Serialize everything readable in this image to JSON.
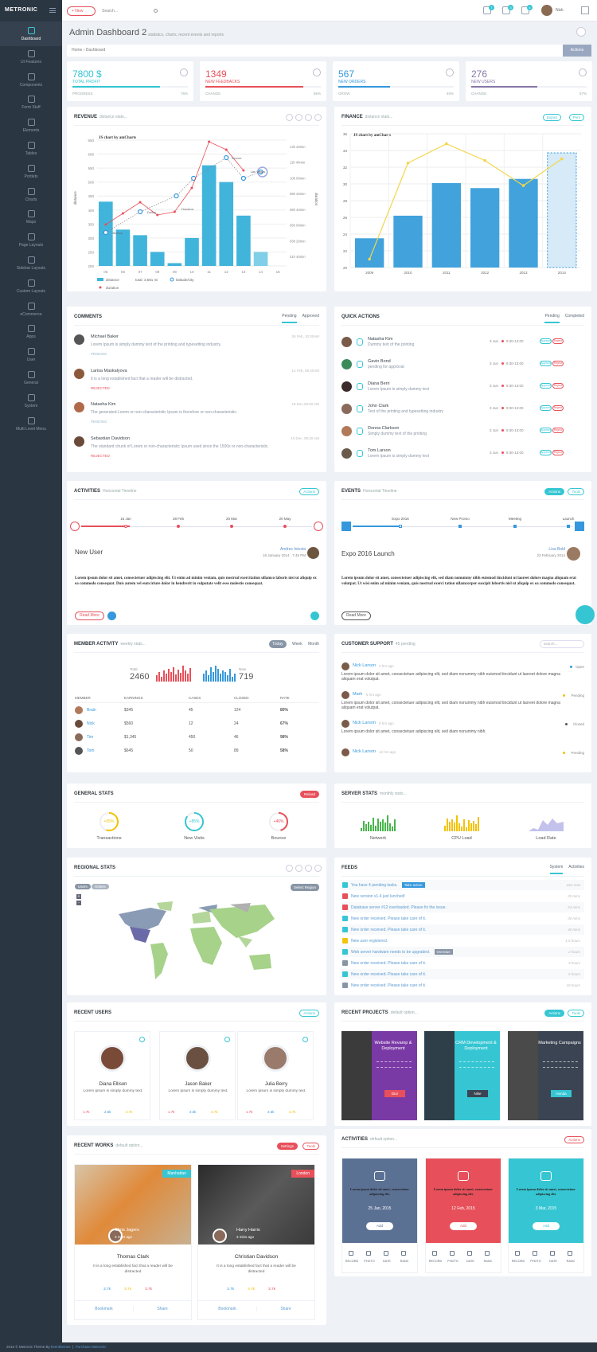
{
  "brand": "METRONIC",
  "topbar": {
    "new_label": "+ New",
    "search_placeholder": "Search...",
    "user_name": "Nick",
    "badges": [
      "7",
      "3",
      "4"
    ]
  },
  "sidebar": [
    "Dashboard",
    "UI Features",
    "Components",
    "Form Stuff",
    "Elements",
    "Tables",
    "Portlets",
    "Charts",
    "Maps",
    "Page Layouts",
    "Sidebar Layouts",
    "Custom Layouts",
    "eCommerce",
    "Apps",
    "User",
    "General",
    "System",
    "Multi Level Menu"
  ],
  "page": {
    "title": "Admin Dashboard 2",
    "subtitle": "statistics, charts, recent events and reports",
    "breadcrumb_home": "Home",
    "breadcrumb_current": "Dashboard",
    "actions_label": "Actions"
  },
  "stats": [
    {
      "value": "7800 $",
      "label": "TOTAL PROFIT",
      "progress_label": "PROGRESS",
      "pct": "76%",
      "fill": 0.76,
      "color": "#32c5d2"
    },
    {
      "value": "1349",
      "label": "NEW FEEDBACKS",
      "progress_label": "CHANGE",
      "pct": "85%",
      "fill": 0.85,
      "color": "#e7505a"
    },
    {
      "value": "567",
      "label": "NEW ORDERS",
      "progress_label": "GROW",
      "pct": "45%",
      "fill": 0.45,
      "color": "#3598dc"
    },
    {
      "value": "276",
      "label": "NEW USERS",
      "progress_label": "CHANGE",
      "pct": "57%",
      "fill": 0.57,
      "color": "#8877a9"
    }
  ],
  "revenue": {
    "title": "REVENUE",
    "subtitle": "distance stats...",
    "chart_data": {
      "type": "bar",
      "categories": [
        "05",
        "06",
        "07",
        "08",
        "09",
        "10",
        "11",
        "12",
        "13",
        "14",
        "15"
      ],
      "series": [
        {
          "name": "distance",
          "values": [
            430,
            330,
            310,
            250,
            210,
            300,
            560,
            500,
            380,
            250,
            0
          ]
        }
      ],
      "ylim": [
        200,
        650
      ],
      "yticks": [
        "650",
        "600",
        "550",
        "500",
        "450",
        "400",
        "350",
        "300",
        "250",
        "200"
      ],
      "y2ticks": [
        "13h 20min",
        "11h 40min",
        "10h 00min",
        "08h 20min",
        "06h 40min",
        "05h 00min",
        "03h 20min",
        "01h 40min"
      ],
      "ylabel": "distance",
      "y2label": "duration",
      "line_labels": [
        "Denver",
        "Las Vegas",
        "Houston",
        "Dallas",
        "Boston"
      ],
      "legend": [
        "distance",
        "total: 3,581 mi",
        "latitude/city",
        "duration"
      ],
      "watermark": "JS chart by amCharts"
    }
  },
  "finance": {
    "title": "FINANCE",
    "subtitle": "distance stats...",
    "export_label": "Export",
    "print_label": "Print",
    "chart_data": {
      "type": "bar",
      "categories": [
        "2009",
        "2010",
        "2011",
        "2012",
        "2013",
        "2014"
      ],
      "series": [
        {
          "name": "bars",
          "values": [
            23.5,
            26.2,
            30.1,
            29.5,
            30.6,
            29.0
          ]
        },
        {
          "name": "line",
          "values": [
            21,
            32.5,
            34.8,
            32.8,
            29.8,
            33
          ]
        }
      ],
      "ylim": [
        20,
        36
      ],
      "yticks": [
        "36",
        "34",
        "32",
        "30",
        "28",
        "26",
        "24",
        "22",
        "20"
      ],
      "watermark": "JS chart by amCharts"
    }
  },
  "comments": {
    "title": "COMMENTS",
    "tabs": [
      "Pending",
      "Approved"
    ],
    "items": [
      {
        "name": "Michael Baker",
        "date": "26 Feb, 10:30AM",
        "text": "Lorem Ipsum is simply dummy text of the printing and typesetting industry.",
        "status": "PENDING"
      },
      {
        "name": "Larisa Maskalyova",
        "date": "12 Feb, 08:30AM",
        "text": "It is a long established fact that a reader will be distracted.",
        "status": "REJECTED"
      },
      {
        "name": "Natasha Kim",
        "date": "19 Dec,09:50 AM",
        "text": "The generated Lorem or non-characteristic Ipsum is therefore or non-characteristic.",
        "status": "PENDING"
      },
      {
        "name": "Sebastian Davidson",
        "date": "10 Dec, 09:20 AM",
        "text": "The standard chunk of Lorem or non-characteristic Ipsum used since the 1500s or non-characteristic.",
        "status": "REJECTED"
      }
    ]
  },
  "quick_actions": {
    "title": "QUICK ACTIONS",
    "tabs": [
      "Pending",
      "Completed"
    ],
    "approve": "Approve",
    "reject": "Reject",
    "items": [
      {
        "name": "Natasha Kim",
        "text": "Dummy text of the printing",
        "date": "3 Jun",
        "time": "9:30-13:00"
      },
      {
        "name": "Gavin Bond",
        "text": "pending for approval",
        "date": "3 Jun",
        "time": "9:30-13:00"
      },
      {
        "name": "Diana Berri",
        "text": "Lorem Ipsum is simply dummy text",
        "date": "3 Jun",
        "time": "9:30-13:00"
      },
      {
        "name": "John Clark",
        "text": "Text of the printing and typesetting industry",
        "date": "3 Jun",
        "time": "9:30-13:00"
      },
      {
        "name": "Donna Clarkson",
        "text": "Simply dummy text of the printing",
        "date": "3 Jun",
        "time": "9:30-13:00"
      },
      {
        "name": "Tom Larson",
        "text": "Lorem Ipsum is simply dummy text",
        "date": "3 Jun",
        "time": "9:30-13:00"
      }
    ]
  },
  "activities": {
    "title": "ACTIVITIES",
    "subtitle": "Horizontal Timeline",
    "actions": "Actions",
    "dates": [
      "16 Jan",
      "28 Feb",
      "20 Mar",
      "20 May"
    ],
    "heading": "New User",
    "author": "Andres Iniesta",
    "when": "16 January 2014 : 7:45 PM",
    "body": "Lorem ipsum dolor sit amet, consectetuer adipiscing elit. Ut enim ad minim veniam, quis nostrud exercitation ullamco laboris nisi ut aliquip ex ea commodo consequat. Duis autem vel eum iriure dolor in hendrerit in vulputate velit esse molestie consequat.",
    "read_more": "Read More"
  },
  "events": {
    "title": "EVENTS",
    "subtitle": "Horizontal Timeline",
    "actions": "Actions",
    "tools": "Tools",
    "dates": [
      "Expo 2016",
      "New Promo",
      "Meeting",
      "Launch"
    ],
    "heading": "Expo 2016 Launch",
    "author": "Lisa Bold",
    "when": "23 February 2014",
    "body": "Lorem ipsum dolor sit amet, consectetuer adipiscing elit, sed diam nonummy nibh euismod tincidunt ut laoreet dolore magna aliquam erat volutpat. Ut wisi enim ad minim veniam, quis nostrud exerci tation ullamcorper suscipit lobortis nisl ut aliquip ex ea commodo consequat.",
    "read_more": "Read More"
  },
  "member_activity": {
    "title": "MEMBER ACTIVITY",
    "subtitle": "weekly stats...",
    "tabs": [
      "Today",
      "Week",
      "Month"
    ],
    "total_label": "Total",
    "total": "2460",
    "new_label": "New",
    "new": "719",
    "headers": [
      "MEMBER",
      "EARNINGS",
      "CASES",
      "CLOSED",
      "RATE"
    ],
    "rows": [
      [
        "Brain",
        "$345",
        "45",
        "124",
        "80%"
      ],
      [
        "Nick",
        "$560",
        "12",
        "24",
        "67%"
      ],
      [
        "Tim",
        "$1,345",
        "450",
        "46",
        "98%"
      ],
      [
        "Tom",
        "$645",
        "50",
        "89",
        "58%"
      ]
    ]
  },
  "customer_support": {
    "title": "CUSTOMER SUPPORT",
    "subtitle": "45 pending",
    "search_placeholder": "search...",
    "items": [
      {
        "name": "Nick Larson",
        "time": "3 hrs ago",
        "status": "Open",
        "text": "Lorem ipsum dolor sit amet, consectetuer adipiscing elit, sed diam nonummy nibh euismod tincidunt ut laoreet dolore magna aliquam erat volutpat."
      },
      {
        "name": "Mark",
        "time": "5 hrs ago",
        "status": "Pending",
        "text": "Lorem ipsum dolor sit amet, consectetuer adipiscing elit, sed diam nonummy nibh euismod tincidunt ut laoreet dolore magna aliquam erat volutpat."
      },
      {
        "name": "Nick Larson",
        "time": "8 hrs ago",
        "status": "Closed",
        "text": "Lorem ipsum dolor sit amet, consectetuer adipiscing elit, sed diam nonummy nibh."
      },
      {
        "name": "Nick Larson",
        "time": "12 hrs ago",
        "status": "Pending",
        "text": ""
      }
    ]
  },
  "general_stats": {
    "title": "GENERAL STATS",
    "reload": "Reload",
    "items": [
      {
        "pct": "+55%",
        "label": "Transactions"
      },
      {
        "pct": "+85%",
        "label": "New Visits"
      },
      {
        "pct": "+46%",
        "label": "Bounce"
      }
    ]
  },
  "server_stats": {
    "title": "SERVER STATS",
    "subtitle": "monthly stats...",
    "items": [
      "Network",
      "CPU Load",
      "Load Rate"
    ]
  },
  "regional": {
    "title": "REGIONAL STATS",
    "tabs": [
      "Users",
      "Orders"
    ],
    "select": "Select Region"
  },
  "feeds": {
    "title": "FEEDS",
    "tabs": [
      "System",
      "Activities"
    ],
    "items": [
      {
        "text": "You have 4 pending tasks.",
        "tag": "Take action",
        "time": "Just now",
        "color": "#36c6d3"
      },
      {
        "text": "New version v1.4 just lunched!",
        "tag": "",
        "time": "20 mins",
        "color": "#e7505a"
      },
      {
        "text": "Database server #12 overloaded. Please fix the issue.",
        "tag": "",
        "time": "24 mins",
        "color": "#e7505a"
      },
      {
        "text": "New order received. Please take care of it.",
        "tag": "",
        "time": "30 mins",
        "color": "#36c6d3"
      },
      {
        "text": "New order received. Please take care of it.",
        "tag": "",
        "time": "40 mins",
        "color": "#36c6d3"
      },
      {
        "text": "New user registered.",
        "tag": "",
        "time": "1.5 hours",
        "color": "#f1c40f"
      },
      {
        "text": "Web server hardware needs to be upgraded.",
        "tag": "Overdue",
        "time": "2 hours",
        "color": "#36c6d3"
      },
      {
        "text": "New order received. Please take care of it.",
        "tag": "",
        "time": "3 hours",
        "color": "#8895a5"
      },
      {
        "text": "New order received. Please take care of it.",
        "tag": "",
        "time": "5 hours",
        "color": "#36c6d3"
      },
      {
        "text": "New order received. Please take care of it.",
        "tag": "",
        "time": "18 hours",
        "color": "#8895a5"
      }
    ]
  },
  "recent_users": {
    "title": "RECENT USERS",
    "actions": "Actions",
    "items": [
      {
        "name": "Diana Ellison",
        "text": "Lorem ipsum is simply dummy text.",
        "s1": "1.7k",
        "s2": "2.6k",
        "s3": "3.7k"
      },
      {
        "name": "Jason Baker",
        "text": "Lorem ipsum is simply dummy text.",
        "s1": "1.7k",
        "s2": "2.6k",
        "s3": "3.7k"
      },
      {
        "name": "Julia Berry",
        "text": "Lorem ipsum is simply dummy text.",
        "s1": "1.7k",
        "s2": "2.6k",
        "s3": "3.7k"
      }
    ]
  },
  "recent_projects": {
    "title": "RECENT PROJECTS",
    "subtitle": "default option...",
    "actions": "Actions",
    "tools": "Tools",
    "items": [
      {
        "name": "Website Revamp & Deployment",
        "tag": "Dior"
      },
      {
        "name": "CRM Development & Deployment",
        "tag": "Nike"
      },
      {
        "name": "Marketing Campaigns",
        "tag": "Honda"
      }
    ]
  },
  "recent_works": {
    "title": "RECENT WORKS",
    "subtitle": "default option...",
    "settings": "Settings",
    "tools": "Tools",
    "items": [
      {
        "tag": "Manhattan",
        "overlay_name": "Chris Jagers",
        "overlay_time": "3 mins ago",
        "name": "Thomas Clark",
        "text": "It is a long established fact that a reader will be distracted",
        "s1": "3.7k",
        "s2": "3.7k",
        "s3": "3.7k",
        "b1": "Bookmark",
        "b2": "Share"
      },
      {
        "tag": "London",
        "overlay_name": "Harry Harris",
        "overlay_time": "3 mins ago",
        "name": "Christian Davidson",
        "text": "It is a long established fact that a reader will be distracted",
        "s1": "3.7k",
        "s2": "3.7k",
        "s3": "3.7k",
        "b1": "Bookmark",
        "b2": "Share"
      }
    ]
  },
  "activities2": {
    "title": "ACTIVITIES",
    "subtitle": "default option...",
    "actions": "Actions",
    "items": [
      {
        "date": "25 Jan, 2015",
        "add": "Add",
        "color": "#5b7194"
      },
      {
        "date": "12 Feb, 2015",
        "add": "Add",
        "color": "#e7505a"
      },
      {
        "date": "3 Mar, 2015",
        "add": "Add",
        "color": "#36c6d3"
      }
    ],
    "footer": [
      "RECORD",
      "PHOTO",
      "DATE",
      "RANC"
    ],
    "body": "Lorem ipsum dolor sit amet, consectetuer adipiscing elit."
  },
  "footer": {
    "text": "2016 © Metronic Theme By ",
    "link1": "keenthemes",
    "link2": "Purchase Metronic!"
  }
}
